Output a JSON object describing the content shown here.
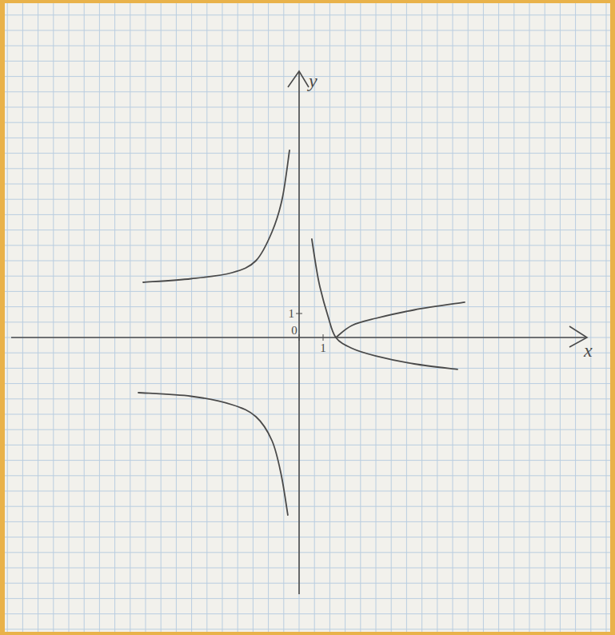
{
  "chart_data": {
    "type": "line",
    "x_label": "x",
    "y_label": "y",
    "xlim": [
      -12.0,
      12.0
    ],
    "ylim": [
      -10.7,
      11.1
    ],
    "xticks": [
      0,
      1
    ],
    "yticks": [
      1
    ],
    "color": "#4a4a4a",
    "series": [
      {
        "x": [
          -6.5,
          -4.5,
          -2.8,
          -1.8,
          -1.13,
          -0.7,
          -0.4
        ],
        "values": [
          2.3,
          2.45,
          2.7,
          3.2,
          4.4,
          5.8,
          7.8
        ]
      },
      {
        "x": [
          -6.7,
          -4.5,
          -2.8,
          -1.8,
          -1.13,
          -0.75,
          -0.47
        ],
        "values": [
          -2.3,
          -2.45,
          -2.8,
          -3.3,
          -4.3,
          -5.7,
          -7.4
        ]
      },
      {
        "x": [
          0.53,
          0.7,
          0.87,
          1.2,
          1.53,
          2.2,
          3.2,
          4.8,
          6.6
        ],
        "values": [
          4.1,
          3.0,
          2.1,
          0.9,
          0.0,
          -0.45,
          -0.77,
          -1.1,
          -1.33
        ]
      },
      {
        "x": [
          1.53,
          2.2,
          3.2,
          4.8,
          6.9
        ],
        "values": [
          0.0,
          0.5,
          0.8,
          1.15,
          1.47
        ]
      }
    ]
  }
}
